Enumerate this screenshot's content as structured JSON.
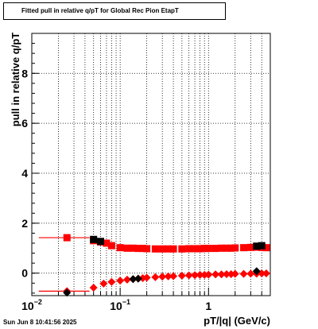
{
  "chart_data": {
    "type": "scatter",
    "title": "Fitted pull in relative q/pT for Global Rec Pion EtapT",
    "xlabel": "pT/|q| (GeV/c)",
    "ylabel": "pull in relative q/pT",
    "xscale": "log",
    "xlim": [
      0.01,
      5
    ],
    "ylim": [
      -0.9,
      9.6
    ],
    "grid": true,
    "x_tick_labels": [
      {
        "x": 0.01,
        "base": "10",
        "exp": "−2"
      },
      {
        "x": 0.1,
        "base": "10",
        "exp": "−1"
      },
      {
        "x": 1,
        "base": "1",
        "exp": ""
      }
    ],
    "y_ticks": [
      0,
      2,
      4,
      6,
      8
    ],
    "series": [
      {
        "marker": "square",
        "color": "#ff0000",
        "x": [
          0.025,
          0.05,
          0.06,
          0.07,
          0.08,
          0.1,
          0.12,
          0.14,
          0.16,
          0.18,
          0.2,
          0.25,
          0.3,
          0.35,
          0.4,
          0.5,
          0.6,
          0.7,
          0.8,
          0.9,
          1.0,
          1.2,
          1.4,
          1.6,
          1.8,
          2.0,
          2.5,
          3.0,
          3.5,
          4.0,
          4.5
        ],
        "y": [
          1.42,
          1.3,
          1.25,
          1.2,
          1.1,
          1.02,
          1.0,
          1.0,
          0.99,
          0.99,
          0.98,
          0.97,
          0.97,
          0.97,
          0.97,
          0.97,
          0.98,
          0.98,
          0.98,
          0.99,
          0.99,
          0.99,
          1.0,
          1.0,
          1.0,
          1.01,
          1.02,
          1.03,
          1.04,
          1.03,
          1.02
        ],
        "xerr": [
          [
            0.013,
            0.02
          ],
          [
            0,
            0
          ],
          [
            0,
            0
          ],
          [
            0,
            0
          ],
          [
            0,
            0
          ],
          [
            0,
            0
          ],
          [
            0,
            0
          ],
          [
            0,
            0
          ],
          [
            0,
            0
          ],
          [
            0,
            0
          ],
          [
            0,
            0
          ],
          [
            0,
            0
          ],
          [
            0,
            0
          ],
          [
            0,
            0
          ],
          [
            0,
            0
          ],
          [
            0,
            0
          ],
          [
            0,
            0
          ],
          [
            0,
            0
          ],
          [
            0,
            0
          ],
          [
            0,
            0
          ],
          [
            0,
            0
          ],
          [
            0,
            0
          ],
          [
            0,
            0
          ],
          [
            0,
            0
          ],
          [
            0,
            0
          ],
          [
            0,
            0
          ],
          [
            0,
            0
          ],
          [
            0,
            0
          ],
          [
            0,
            0
          ],
          [
            0,
            0
          ],
          [
            0,
            0
          ]
        ]
      },
      {
        "marker": "square",
        "color": "#000000",
        "x": [
          0.05,
          0.06,
          3.5,
          4.0
        ],
        "y": [
          1.35,
          1.27,
          1.08,
          1.1
        ],
        "xerr": [
          [
            0,
            0
          ],
          [
            0,
            0
          ],
          [
            0,
            0
          ],
          [
            0,
            0
          ]
        ]
      },
      {
        "marker": "diamond",
        "color": "#ff0000",
        "x": [
          0.025,
          0.05,
          0.065,
          0.08,
          0.1,
          0.12,
          0.14,
          0.16,
          0.18,
          0.2,
          0.25,
          0.3,
          0.35,
          0.4,
          0.5,
          0.6,
          0.7,
          0.8,
          0.9,
          1.0,
          1.2,
          1.4,
          1.6,
          1.8,
          2.0,
          2.5,
          3.0,
          3.5,
          4.0,
          4.5
        ],
        "y": [
          -0.72,
          -0.58,
          -0.42,
          -0.35,
          -0.3,
          -0.26,
          -0.24,
          -0.22,
          -0.2,
          -0.18,
          -0.16,
          -0.14,
          -0.13,
          -0.12,
          -0.1,
          -0.09,
          -0.08,
          -0.07,
          -0.07,
          -0.06,
          -0.05,
          -0.05,
          -0.04,
          -0.04,
          -0.03,
          -0.03,
          -0.02,
          -0.02,
          -0.01,
          -0.01
        ],
        "xerr": [
          [
            0.013,
            0.02
          ],
          [
            0,
            0
          ],
          [
            0,
            0
          ],
          [
            0,
            0
          ],
          [
            0,
            0
          ],
          [
            0,
            0
          ],
          [
            0,
            0
          ],
          [
            0,
            0
          ],
          [
            0,
            0
          ],
          [
            0,
            0
          ],
          [
            0,
            0
          ],
          [
            0,
            0
          ],
          [
            0,
            0
          ],
          [
            0,
            0
          ],
          [
            0,
            0
          ],
          [
            0,
            0
          ],
          [
            0,
            0
          ],
          [
            0,
            0
          ],
          [
            0,
            0
          ],
          [
            0,
            0
          ],
          [
            0,
            0
          ],
          [
            0,
            0
          ],
          [
            0,
            0
          ],
          [
            0,
            0
          ],
          [
            0,
            0
          ],
          [
            0,
            0
          ],
          [
            0,
            0
          ],
          [
            0,
            0
          ],
          [
            0,
            0
          ],
          [
            0,
            0
          ]
        ]
      },
      {
        "marker": "diamond",
        "color": "#000000",
        "x": [
          0.025,
          0.14,
          0.16,
          3.5
        ],
        "y": [
          -0.78,
          -0.24,
          -0.22,
          0.08
        ],
        "xerr": [
          [
            0,
            0
          ],
          [
            0,
            0
          ],
          [
            0,
            0
          ],
          [
            0,
            0
          ]
        ]
      }
    ]
  },
  "timestamp": "Sun Jun  8 10:41:56 2025"
}
